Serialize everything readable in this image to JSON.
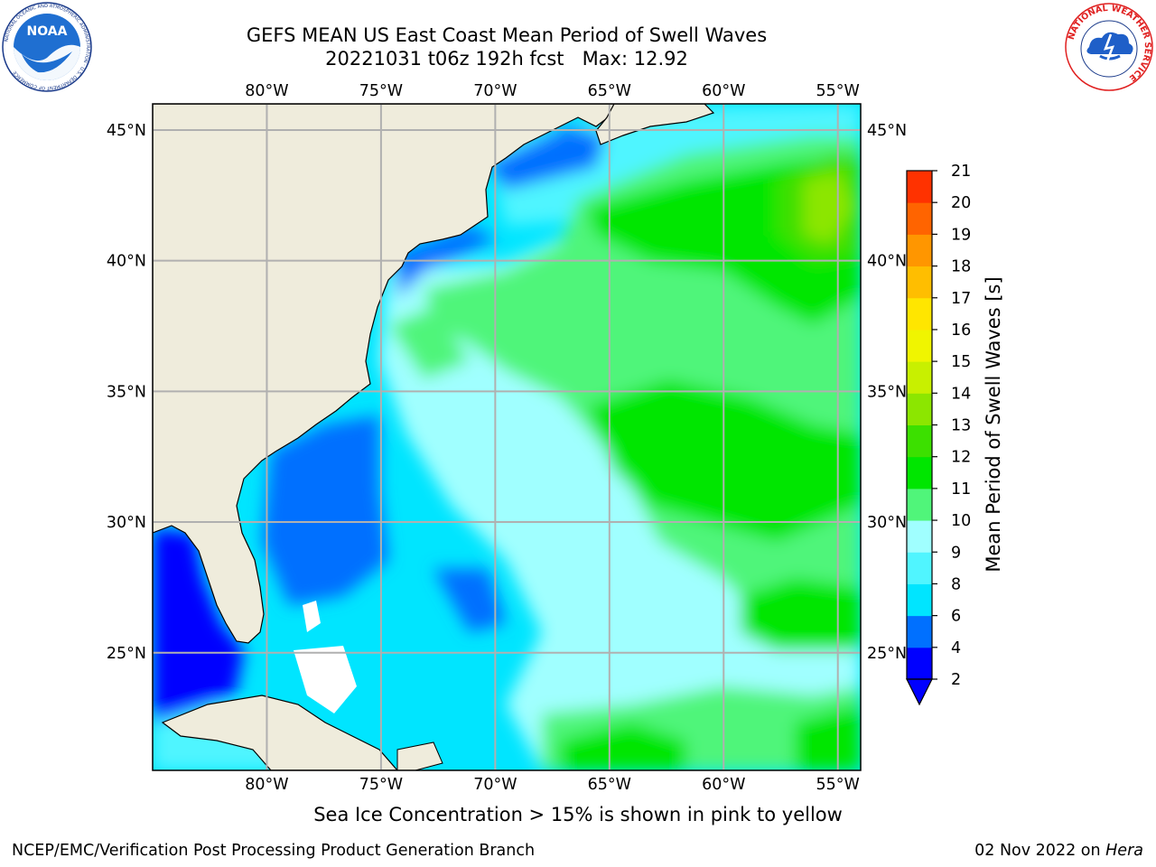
{
  "header": {
    "title_line1": "GEFS MEAN US East Coast Mean Period of Swell Waves",
    "title_line2": "20221031 t06z 192h fcst   Max: 12.92"
  },
  "logos": {
    "noaa": {
      "text": "NOAA",
      "ring_text": "NATIONAL OCEANIC AND ATMOSPHERIC ADMINISTRATION · U.S. DEPARTMENT OF COMMERCE",
      "icon": "noaa-seal-icon"
    },
    "nws": {
      "ring_text": "NATIONAL WEATHER SERVICE",
      "icon": "nws-seal-icon"
    }
  },
  "map": {
    "lon_range": [
      -85,
      -54
    ],
    "lat_range": [
      20.5,
      46
    ],
    "grid": true,
    "lon_ticks": [
      "80°W",
      "75°W",
      "70°W",
      "65°W",
      "60°W",
      "55°W"
    ],
    "lon_tick_values": [
      -80,
      -75,
      -70,
      -65,
      -60,
      -55
    ],
    "lat_ticks": [
      "45°N",
      "40°N",
      "35°N",
      "30°N",
      "25°N"
    ],
    "lat_tick_values": [
      45,
      40,
      35,
      30,
      25
    ],
    "land_color": "#efecdc",
    "grid_color": "#b0b0b0"
  },
  "colorbar": {
    "label": "Mean Period of Swell Waves [s]",
    "ticks": [
      "2",
      "4",
      "6",
      "8",
      "9",
      "10",
      "11",
      "12",
      "13",
      "14",
      "15",
      "16",
      "17",
      "18",
      "19",
      "20",
      "21"
    ],
    "colors": [
      "#0000ff",
      "#0070ff",
      "#00e5ff",
      "#50f5ff",
      "#a0ffff",
      "#50f57a",
      "#00e600",
      "#3ce000",
      "#8ce600",
      "#c8f000",
      "#f0f500",
      "#ffe600",
      "#ffbe00",
      "#ff9600",
      "#ff6400",
      "#ff3200"
    ],
    "extend_color": "#0000ff",
    "orientation": "vertical",
    "extend": "min"
  },
  "notes": {
    "ice": "Sea Ice Concentration > 15% is shown in pink to yellow"
  },
  "footer": {
    "left": "NCEP/EMC/Verification Post Processing Product Generation Branch",
    "right_date": "02 Nov 2022 on ",
    "right_host": "Hera"
  }
}
